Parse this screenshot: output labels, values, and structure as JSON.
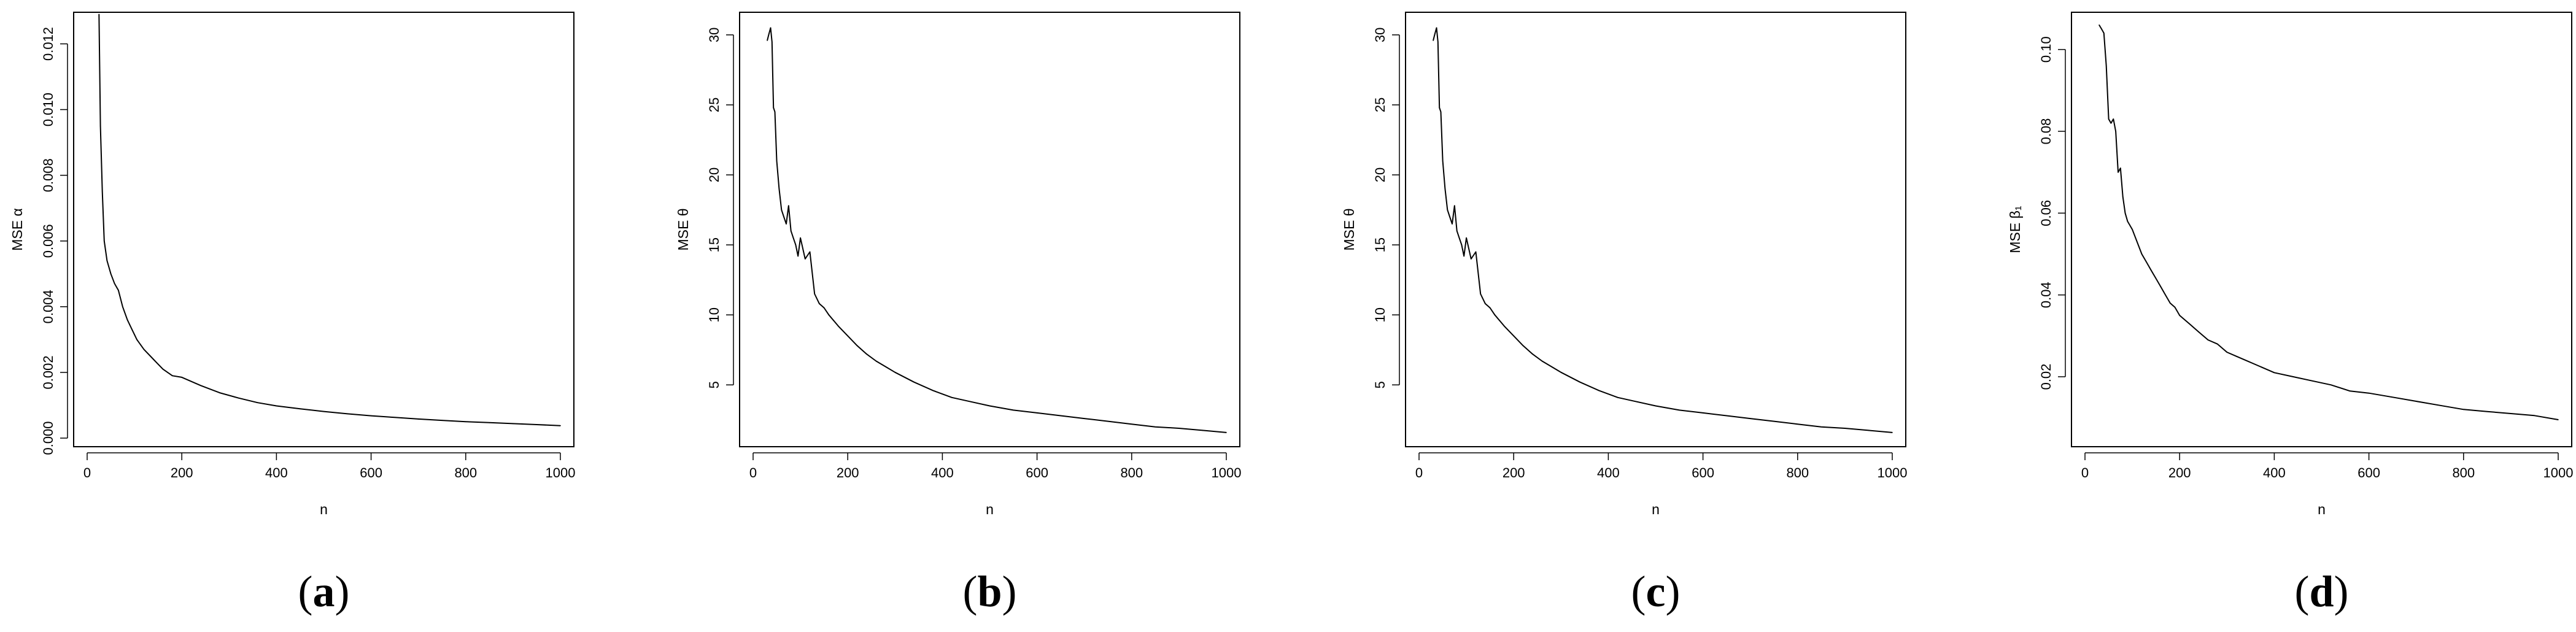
{
  "chart_data": [
    {
      "type": "line",
      "caption": "(a)",
      "caption_letter": "a",
      "xlabel": "n",
      "ylabel": "MSE α",
      "xlim": [
        0,
        1000
      ],
      "ylim": [
        0,
        0.0127
      ],
      "xticks": [
        0,
        200,
        400,
        600,
        800,
        1000
      ],
      "xtick_labels": [
        "0",
        "200",
        "400",
        "600",
        "800",
        "1000"
      ],
      "yticks": [
        0,
        0.002,
        0.004,
        0.006,
        0.008,
        0.01,
        0.012
      ],
      "ytick_labels": [
        "0.000",
        "0.002",
        "0.004",
        "0.006",
        "0.008",
        "0.010",
        "0.012"
      ],
      "grid": false,
      "series": [
        {
          "x": [
            25,
            28,
            32,
            36,
            42,
            50,
            58,
            66,
            75,
            85,
            95,
            105,
            120,
            140,
            160,
            180,
            200,
            240,
            280,
            320,
            360,
            400,
            450,
            500,
            550,
            600,
            650,
            700,
            750,
            800,
            850,
            900,
            950,
            1000
          ],
          "y": [
            0.0129,
            0.0095,
            0.0075,
            0.006,
            0.0054,
            0.005,
            0.0047,
            0.0045,
            0.004,
            0.0036,
            0.0033,
            0.003,
            0.0027,
            0.0024,
            0.0021,
            0.0019,
            0.00185,
            0.0016,
            0.00138,
            0.00122,
            0.00108,
            0.00098,
            0.00089,
            0.00081,
            0.00074,
            0.00068,
            0.00063,
            0.00058,
            0.00054,
            0.0005,
            0.00047,
            0.00044,
            0.00041,
            0.00038
          ]
        }
      ]
    },
    {
      "type": "line",
      "caption": "(b)",
      "caption_letter": "b",
      "xlabel": "n",
      "ylabel": "MSE θ",
      "xlim": [
        0,
        1000
      ],
      "ylim": [
        1.2,
        31
      ],
      "xticks": [
        0,
        200,
        400,
        600,
        800,
        1000
      ],
      "xtick_labels": [
        "0",
        "200",
        "400",
        "600",
        "800",
        "1000"
      ],
      "yticks": [
        5,
        10,
        15,
        20,
        25,
        30
      ],
      "ytick_labels": [
        "5",
        "10",
        "15",
        "20",
        "25",
        "30"
      ],
      "grid": false,
      "series": [
        {
          "x": [
            30,
            33,
            37,
            40,
            43,
            46,
            50,
            55,
            60,
            65,
            70,
            75,
            80,
            85,
            90,
            95,
            100,
            110,
            120,
            130,
            140,
            150,
            160,
            180,
            200,
            220,
            240,
            260,
            280,
            300,
            340,
            380,
            420,
            460,
            500,
            550,
            600,
            650,
            700,
            750,
            800,
            850,
            900,
            950,
            1000
          ],
          "y": [
            29.6,
            30.0,
            30.5,
            29.5,
            24.8,
            24.5,
            21.0,
            19.0,
            17.5,
            17.0,
            16.5,
            17.8,
            16.0,
            15.5,
            15.0,
            14.2,
            15.5,
            14.0,
            14.5,
            11.5,
            10.8,
            10.5,
            10.0,
            9.2,
            8.5,
            7.8,
            7.2,
            6.7,
            6.3,
            5.9,
            5.2,
            4.6,
            4.1,
            3.8,
            3.5,
            3.2,
            3.0,
            2.8,
            2.6,
            2.4,
            2.2,
            2.0,
            1.9,
            1.75,
            1.6
          ]
        }
      ]
    },
    {
      "type": "line",
      "caption": "(c)",
      "caption_letter": "c",
      "xlabel": "n",
      "ylabel": "MSE θ",
      "xlim": [
        0,
        1000
      ],
      "ylim": [
        1.2,
        31
      ],
      "xticks": [
        0,
        200,
        400,
        600,
        800,
        1000
      ],
      "xtick_labels": [
        "0",
        "200",
        "400",
        "600",
        "800",
        "1000"
      ],
      "yticks": [
        5,
        10,
        15,
        20,
        25,
        30
      ],
      "ytick_labels": [
        "5",
        "10",
        "15",
        "20",
        "25",
        "30"
      ],
      "grid": false,
      "series": [
        {
          "x": [
            30,
            33,
            37,
            40,
            43,
            46,
            50,
            55,
            60,
            65,
            70,
            75,
            80,
            85,
            90,
            95,
            100,
            110,
            120,
            130,
            140,
            150,
            160,
            180,
            200,
            220,
            240,
            260,
            280,
            300,
            340,
            380,
            420,
            460,
            500,
            550,
            600,
            650,
            700,
            750,
            800,
            850,
            900,
            950,
            1000
          ],
          "y": [
            29.6,
            30.0,
            30.5,
            29.5,
            24.8,
            24.5,
            21.0,
            19.0,
            17.5,
            17.0,
            16.5,
            17.8,
            16.0,
            15.5,
            15.0,
            14.2,
            15.5,
            14.0,
            14.5,
            11.5,
            10.8,
            10.5,
            10.0,
            9.2,
            8.5,
            7.8,
            7.2,
            6.7,
            6.3,
            5.9,
            5.2,
            4.6,
            4.1,
            3.8,
            3.5,
            3.2,
            3.0,
            2.8,
            2.6,
            2.4,
            2.2,
            2.0,
            1.9,
            1.75,
            1.6
          ]
        }
      ]
    },
    {
      "type": "line",
      "caption": "(d)",
      "caption_letter": "d",
      "xlabel": "n",
      "ylabel": "MSE β₁",
      "xlim": [
        0,
        1000
      ],
      "ylim": [
        0.005,
        0.107
      ],
      "xticks": [
        0,
        200,
        400,
        600,
        800,
        1000
      ],
      "xtick_labels": [
        "0",
        "200",
        "400",
        "600",
        "800",
        "1000"
      ],
      "yticks": [
        0.02,
        0.04,
        0.06,
        0.08,
        0.1
      ],
      "ytick_labels": [
        "0.02",
        "0.04",
        "0.06",
        "0.08",
        "0.10"
      ],
      "grid": false,
      "series": [
        {
          "x": [
            30,
            35,
            40,
            45,
            50,
            55,
            60,
            65,
            70,
            75,
            80,
            85,
            90,
            95,
            100,
            110,
            120,
            130,
            140,
            150,
            160,
            170,
            180,
            190,
            200,
            220,
            240,
            260,
            280,
            300,
            320,
            340,
            360,
            400,
            440,
            480,
            520,
            560,
            600,
            650,
            700,
            750,
            800,
            850,
            900,
            950,
            1000
          ],
          "y": [
            0.106,
            0.105,
            0.104,
            0.096,
            0.083,
            0.082,
            0.083,
            0.08,
            0.07,
            0.071,
            0.064,
            0.06,
            0.058,
            0.057,
            0.056,
            0.053,
            0.05,
            0.048,
            0.046,
            0.044,
            0.042,
            0.04,
            0.038,
            0.037,
            0.035,
            0.033,
            0.031,
            0.029,
            0.028,
            0.026,
            0.025,
            0.024,
            0.023,
            0.021,
            0.02,
            0.019,
            0.018,
            0.0165,
            0.016,
            0.015,
            0.014,
            0.013,
            0.012,
            0.0115,
            0.011,
            0.0105,
            0.0095
          ]
        }
      ]
    }
  ]
}
